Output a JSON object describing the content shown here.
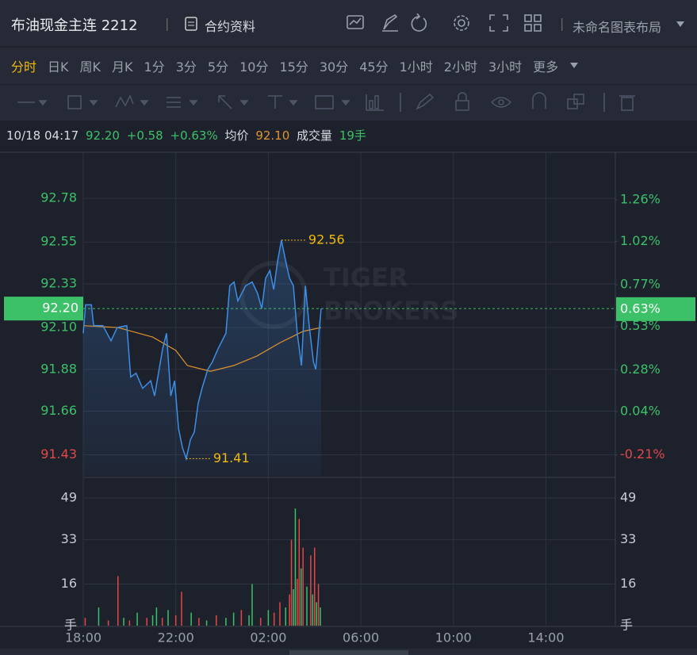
{
  "header": {
    "title": "布油现金主连 2212",
    "contract_info": "合约资料",
    "layout_name": "未命名图表布局"
  },
  "tabs": [
    "分时",
    "日K",
    "周K",
    "月K",
    "1分",
    "3分",
    "5分",
    "10分",
    "15分",
    "30分",
    "45分",
    "1小时",
    "2小时",
    "3小时",
    "更多"
  ],
  "info": {
    "datetime": "10/18 04:17",
    "price": "92.20",
    "change": "+0.58",
    "change_pct": "+0.63%",
    "avg_label": "均价",
    "avg": "92.10",
    "volume_label": "成交量",
    "volume": "19手"
  },
  "chart_data": {
    "type": "line",
    "watermark": [
      "TIGER",
      "BROKERS"
    ],
    "xlim": [
      "18:00",
      "17:00"
    ],
    "xticks": [
      "18:00",
      "22:00",
      "02:00",
      "06:00",
      "10:00",
      "14:00"
    ],
    "ylim": [
      91.32,
      93.01
    ],
    "yticks": [
      92.78,
      92.55,
      92.33,
      {
        "value": 92.1,
        "label": "92.10"
      },
      91.88,
      91.66,
      91.43
    ],
    "y2lim": [
      -0.33,
      1.52
    ],
    "y2ticks": [
      {
        "value": 1.26,
        "label": "1.26%"
      },
      {
        "value": 1.02,
        "label": "1.02%"
      },
      {
        "value": 0.77,
        "label": "0.77%"
      },
      {
        "value": 0.53,
        "label": "0.53%"
      },
      {
        "value": 0.28,
        "label": "0.28%"
      },
      {
        "value": 0.04,
        "label": "0.04%"
      },
      {
        "value": -0.21,
        "label": "-0.21%"
      }
    ],
    "grid": true,
    "price": {
      "color": "#3d8ee6",
      "x": [
        "18:00",
        "18:06",
        "18:21",
        "18:27",
        "18:51",
        "19:12",
        "19:28",
        "19:53",
        "20:03",
        "20:17",
        "20:34",
        "20:55",
        "21:05",
        "21:26",
        "21:36",
        "21:47",
        "21:57",
        "22:07",
        "22:17",
        "22:27",
        "22:38",
        "22:48",
        "22:58",
        "23:08",
        "23:23",
        "23:35",
        "23:50",
        "00:10",
        "00:20",
        "00:31",
        "00:41",
        "00:51",
        "01:01",
        "01:18",
        "01:32",
        "01:43",
        "01:53",
        "02:04",
        "02:14",
        "02:24",
        "02:34",
        "02:45",
        "02:55",
        "03:05",
        "03:15",
        "03:26",
        "03:36",
        "03:46",
        "03:57",
        "04:03",
        "04:11",
        "04:17"
      ],
      "values": [
        92.07,
        92.22,
        92.22,
        92.11,
        92.11,
        92.03,
        92.1,
        92.11,
        91.84,
        91.86,
        91.78,
        91.82,
        91.74,
        91.99,
        92.07,
        91.74,
        91.82,
        91.57,
        91.47,
        91.41,
        91.51,
        91.55,
        91.7,
        91.78,
        91.88,
        91.92,
        91.99,
        92.07,
        92.32,
        92.34,
        92.24,
        92.28,
        92.32,
        92.34,
        92.28,
        92.2,
        92.36,
        92.4,
        92.3,
        92.45,
        92.56,
        92.45,
        92.36,
        92.32,
        92.07,
        91.9,
        92.32,
        92.11,
        91.92,
        91.88,
        92.07,
        92.2
      ]
    },
    "average": {
      "color": "#e0922f",
      "x": [
        "18:00",
        "19:30",
        "21:00",
        "22:00",
        "22:30",
        "23:30",
        "00:30",
        "01:30",
        "02:30",
        "03:30",
        "04:17"
      ],
      "values": [
        92.11,
        92.1,
        92.05,
        91.98,
        91.9,
        91.87,
        91.9,
        91.95,
        92.02,
        92.08,
        92.1
      ]
    },
    "high": {
      "x": "02:34",
      "value": 92.56
    },
    "low": {
      "x": "22:27",
      "value": 91.41
    },
    "last": {
      "value": 92.2,
      "label": "92.20",
      "pct": {
        "value": 0.63,
        "label": "0.63%"
      }
    },
    "volume": {
      "ylim": [
        0,
        60
      ],
      "yticks": [
        49,
        33,
        16
      ],
      "unit": "手",
      "x": [
        "18:05",
        "18:40",
        "19:05",
        "19:30",
        "19:45",
        "20:00",
        "20:20",
        "20:45",
        "21:00",
        "21:10",
        "21:25",
        "21:40",
        "22:00",
        "22:15",
        "22:40",
        "23:00",
        "23:20",
        "23:45",
        "00:10",
        "00:30",
        "00:50",
        "01:10",
        "01:18",
        "01:40",
        "02:00",
        "02:15",
        "02:30",
        "02:45",
        "02:55",
        "03:00",
        "03:05",
        "03:10",
        "03:15",
        "03:20",
        "03:25",
        "03:30",
        "03:40",
        "03:50",
        "03:55",
        "04:00",
        "04:05",
        "04:10",
        "04:15"
      ],
      "values": [
        3,
        7,
        2,
        19,
        3,
        2,
        5,
        3,
        4,
        7,
        3,
        6,
        4,
        13,
        5,
        3,
        2,
        4,
        3,
        5,
        6,
        4,
        16,
        3,
        6,
        5,
        9,
        7,
        12,
        33,
        14,
        45,
        18,
        41,
        22,
        30,
        15,
        27,
        12,
        30,
        9,
        16,
        7
      ],
      "colors": [
        "#e04848",
        "#3cc068",
        "#e04848",
        "#e04848",
        "#3cc068",
        "#e04848",
        "#3cc068",
        "#e04848",
        "#3cc068",
        "#3cc068",
        "#e04848",
        "#3cc068",
        "#e04848",
        "#e04848",
        "#3cc068",
        "#e04848",
        "#3cc068",
        "#e04848",
        "#3cc068",
        "#3cc068",
        "#e04848",
        "#3cc068",
        "#3cc068",
        "#e04848",
        "#3cc068",
        "#e04848",
        "#e04848",
        "#3cc068",
        "#e04848",
        "#e04848",
        "#3cc068",
        "#3cc068",
        "#e04848",
        "#e04848",
        "#3cc068",
        "#e04848",
        "#3cc068",
        "#e04848",
        "#3cc068",
        "#e04848",
        "#3cc068",
        "#e04848",
        "#3cc068"
      ]
    }
  }
}
